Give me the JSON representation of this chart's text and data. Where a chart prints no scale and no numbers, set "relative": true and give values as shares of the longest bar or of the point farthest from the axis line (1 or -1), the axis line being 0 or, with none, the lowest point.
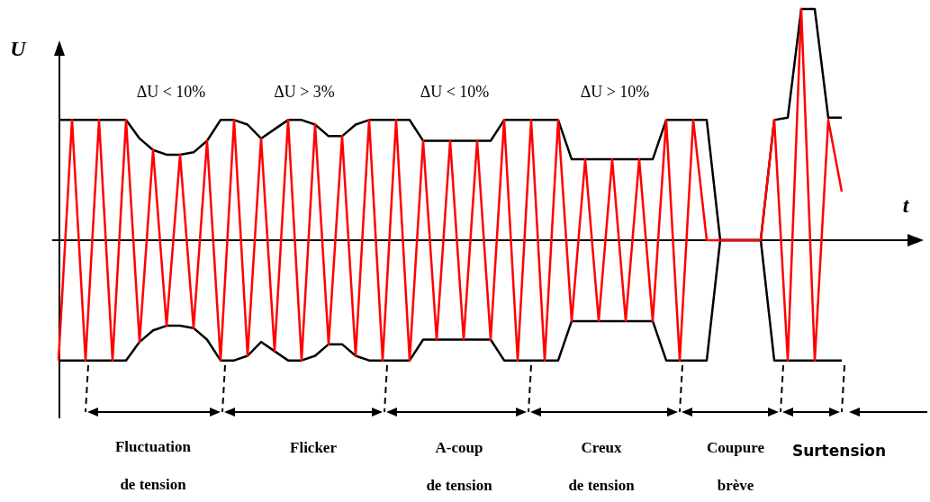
{
  "chart_data": {
    "type": "line",
    "relative": true,
    "xlabel": "t",
    "ylabel": "U",
    "categories": [
      null,
      null,
      null,
      null,
      null,
      null,
      null,
      null,
      null,
      null,
      null,
      null,
      null,
      null,
      null,
      null,
      null,
      null,
      null,
      null,
      null,
      null,
      null,
      null,
      null,
      null,
      null,
      null,
      null,
      null,
      null,
      null,
      null,
      null,
      null,
      null,
      null,
      null,
      null,
      null,
      null,
      null,
      null,
      null,
      null,
      null,
      null,
      null,
      null,
      null,
      null,
      null,
      null,
      null,
      null,
      null,
      null,
      null,
      null
    ],
    "series": [
      {
        "color": "#000000",
        "values": [
          0.52,
          0.52,
          0.52,
          0.52,
          0.52,
          0.52,
          0.44,
          0.39,
          0.37,
          0.37,
          0.38,
          0.43,
          0.52,
          0.52,
          0.5,
          0.44,
          0.48,
          0.52,
          0.52,
          0.5,
          0.45,
          0.45,
          0.5,
          0.52,
          0.52,
          0.52,
          0.52,
          0.43,
          0.43,
          0.43,
          0.43,
          0.43,
          0.43,
          0.52,
          0.52,
          0.52,
          0.52,
          0.52,
          0.35,
          0.35,
          0.35,
          0.35,
          0.35,
          0.35,
          0.35,
          0.52,
          0.52,
          0.52,
          0.52,
          0,
          0,
          0,
          0,
          0.52,
          0.53,
          1,
          1,
          0.53,
          0.53
        ]
      },
      {
        "color": "#000000",
        "values": [
          -0.52,
          -0.52,
          -0.52,
          -0.52,
          -0.52,
          -0.52,
          -0.44,
          -0.39,
          -0.37,
          -0.37,
          -0.38,
          -0.43,
          -0.52,
          -0.52,
          -0.5,
          -0.44,
          -0.48,
          -0.52,
          -0.52,
          -0.5,
          -0.45,
          -0.45,
          -0.5,
          -0.52,
          -0.52,
          -0.52,
          -0.52,
          -0.43,
          -0.43,
          -0.43,
          -0.43,
          -0.43,
          -0.43,
          -0.52,
          -0.52,
          -0.52,
          -0.52,
          -0.52,
          -0.35,
          -0.35,
          -0.35,
          -0.35,
          -0.35,
          -0.35,
          -0.35,
          -0.52,
          -0.52,
          -0.52,
          -0.52,
          0,
          0,
          0,
          0,
          -0.52,
          -0.52,
          -0.52,
          -0.52,
          -0.52,
          -0.52
        ]
      },
      {
        "color": "#ff0000",
        "values": [
          -0.52,
          0.52,
          -0.52,
          0.52,
          -0.52,
          0.52,
          -0.44,
          0.39,
          -0.37,
          0.37,
          -0.38,
          0.43,
          -0.52,
          0.52,
          -0.5,
          0.44,
          -0.48,
          0.52,
          -0.52,
          0.5,
          -0.45,
          0.45,
          -0.5,
          0.52,
          -0.52,
          0.52,
          -0.52,
          0.43,
          -0.43,
          0.43,
          -0.43,
          0.43,
          -0.43,
          0.52,
          -0.52,
          0.52,
          -0.52,
          0.52,
          -0.35,
          0.35,
          -0.35,
          0.35,
          -0.35,
          0.35,
          -0.35,
          0.52,
          -0.52,
          0.52,
          0,
          0,
          0,
          0,
          0,
          0.52,
          -0.52,
          1,
          -0.52,
          0.52,
          0.21
        ]
      }
    ],
    "annotations": [
      "ΔU < 10%",
      "ΔU > 3%",
      "ΔU < 10%",
      "ΔU > 10%",
      "Fluctuation\nde tension",
      "Flicker",
      "A-coup\nde tension",
      "Creux\nde tension",
      "Coupure\nbrève",
      "Surtension"
    ]
  }
}
